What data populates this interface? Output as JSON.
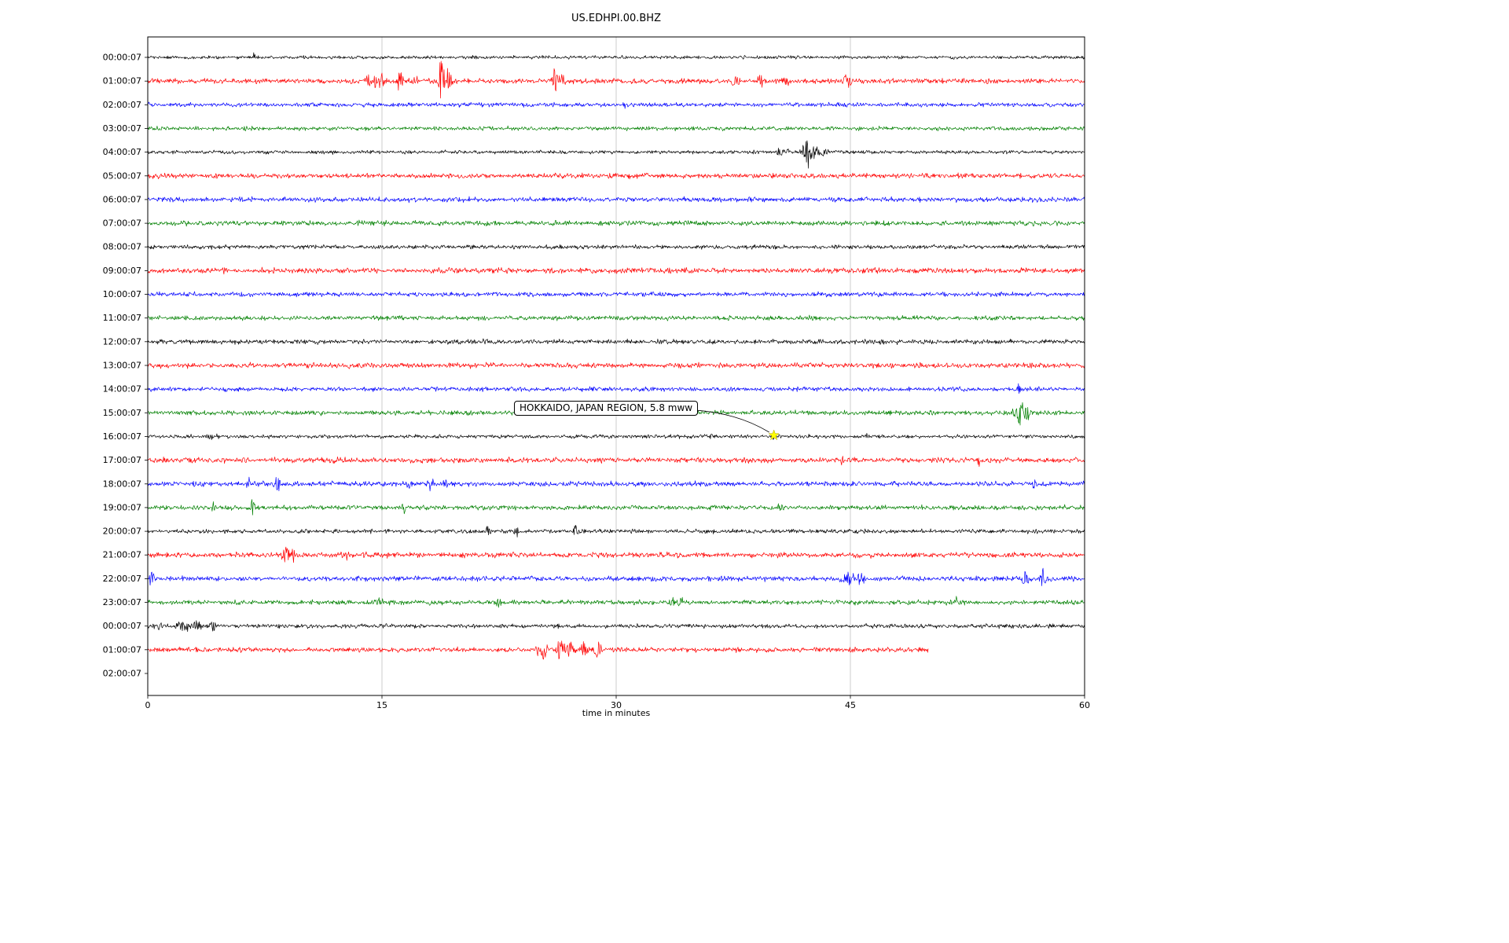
{
  "chart_data": {
    "type": "line",
    "title": "US.EDHPI.00.BHZ",
    "xlabel": "time in minutes",
    "xlim": [
      0,
      60
    ],
    "xticks": [
      0,
      15,
      30,
      45,
      60
    ],
    "grid_x": [
      15,
      30,
      45
    ],
    "legend": "none",
    "description": "24-hour helicorder day-plot, one trace per hour, colors cycle black/red/blue/green. Events are noise bursts: t=minutes, a=peak amplitude px, d=duration minutes.",
    "trace_colors": {
      "k": "#000000",
      "r": "#ff0000",
      "b": "#0000ff",
      "g": "#008000"
    },
    "rows": [
      {
        "label": "00:00:07",
        "color": "#000000",
        "noise": 1.2,
        "end": 60,
        "events": [
          {
            "t": 6.8,
            "a": 7,
            "d": 0.12
          },
          {
            "t": 38.2,
            "a": 4,
            "d": 0.12
          }
        ]
      },
      {
        "label": "01:00:07",
        "color": "#ff0000",
        "noise": 1.8,
        "end": 60,
        "events": [
          {
            "t": 14.3,
            "a": 11,
            "d": 0.5
          },
          {
            "t": 15.0,
            "a": 8,
            "d": 0.4
          },
          {
            "t": 16.2,
            "a": 13,
            "d": 0.35
          },
          {
            "t": 17.0,
            "a": 3,
            "d": 2.5
          },
          {
            "t": 18.8,
            "a": 38,
            "d": 0.2
          },
          {
            "t": 19.2,
            "a": 14,
            "d": 0.5
          },
          {
            "t": 26.1,
            "a": 17,
            "d": 0.25
          },
          {
            "t": 26.5,
            "a": 8,
            "d": 0.4
          },
          {
            "t": 37.6,
            "a": 7,
            "d": 0.5
          },
          {
            "t": 39.2,
            "a": 9,
            "d": 0.3
          },
          {
            "t": 40.9,
            "a": 7,
            "d": 0.4
          },
          {
            "t": 44.8,
            "a": 8,
            "d": 0.4
          }
        ]
      },
      {
        "label": "02:00:07",
        "color": "#0000ff",
        "noise": 1.5,
        "end": 60,
        "events": [
          {
            "t": 10.6,
            "a": 3,
            "d": 0.3
          },
          {
            "t": 30.6,
            "a": 9,
            "d": 0.15
          }
        ]
      },
      {
        "label": "03:00:07",
        "color": "#008000",
        "noise": 1.5,
        "end": 60,
        "events": []
      },
      {
        "label": "04:00:07",
        "color": "#000000",
        "noise": 1.3,
        "end": 60,
        "events": [
          {
            "t": 40.7,
            "a": 7,
            "d": 0.6
          },
          {
            "t": 42.2,
            "a": 24,
            "d": 0.35
          },
          {
            "t": 42.6,
            "a": 12,
            "d": 0.5
          },
          {
            "t": 43.3,
            "a": 6,
            "d": 0.4
          }
        ]
      },
      {
        "label": "05:00:07",
        "color": "#ff0000",
        "noise": 1.8,
        "end": 60,
        "events": []
      },
      {
        "label": "06:00:07",
        "color": "#0000ff",
        "noise": 1.8,
        "end": 60,
        "events": []
      },
      {
        "label": "07:00:07",
        "color": "#008000",
        "noise": 1.8,
        "end": 60,
        "events": []
      },
      {
        "label": "08:00:07",
        "color": "#000000",
        "noise": 1.5,
        "end": 60,
        "events": []
      },
      {
        "label": "09:00:07",
        "color": "#ff0000",
        "noise": 1.9,
        "end": 60,
        "events": []
      },
      {
        "label": "10:00:07",
        "color": "#0000ff",
        "noise": 1.6,
        "end": 60,
        "events": []
      },
      {
        "label": "11:00:07",
        "color": "#008000",
        "noise": 1.7,
        "end": 60,
        "events": []
      },
      {
        "label": "12:00:07",
        "color": "#000000",
        "noise": 1.7,
        "end": 60,
        "events": []
      },
      {
        "label": "13:00:07",
        "color": "#ff0000",
        "noise": 1.9,
        "end": 60,
        "events": [
          {
            "t": 13.0,
            "a": 4,
            "d": 0.15
          }
        ]
      },
      {
        "label": "14:00:07",
        "color": "#0000ff",
        "noise": 1.6,
        "end": 60,
        "events": [
          {
            "t": 55.8,
            "a": 9,
            "d": 0.2
          }
        ]
      },
      {
        "label": "15:00:07",
        "color": "#008000",
        "noise": 1.7,
        "end": 60,
        "events": [
          {
            "t": 55.5,
            "a": 7,
            "d": 0.25
          },
          {
            "t": 55.9,
            "a": 20,
            "d": 0.3
          },
          {
            "t": 56.3,
            "a": 10,
            "d": 0.4
          }
        ]
      },
      {
        "label": "16:00:07",
        "color": "#000000",
        "noise": 1.4,
        "end": 60,
        "events": [
          {
            "t": 4.0,
            "a": 5,
            "d": 0.3
          },
          {
            "t": 4.4,
            "a": 4,
            "d": 0.2
          },
          {
            "t": 36.1,
            "a": 8,
            "d": 0.1
          },
          {
            "t": 40.1,
            "a": 3,
            "d": 0.25
          },
          {
            "t": 46.0,
            "a": 5,
            "d": 0.1
          }
        ]
      },
      {
        "label": "17:00:07",
        "color": "#ff0000",
        "noise": 1.9,
        "end": 60,
        "events": [
          {
            "t": 44.5,
            "a": 6,
            "d": 0.25
          },
          {
            "t": 53.2,
            "a": 8,
            "d": 0.15
          }
        ]
      },
      {
        "label": "18:00:07",
        "color": "#0000ff",
        "noise": 1.8,
        "end": 60,
        "events": [
          {
            "t": 6.5,
            "a": 8,
            "d": 0.25
          },
          {
            "t": 8.3,
            "a": 10,
            "d": 0.25
          },
          {
            "t": 16.8,
            "a": 7,
            "d": 0.3
          },
          {
            "t": 18.1,
            "a": 8,
            "d": 0.3
          },
          {
            "t": 19.0,
            "a": 5,
            "d": 0.3
          },
          {
            "t": 56.8,
            "a": 9,
            "d": 0.25
          }
        ]
      },
      {
        "label": "19:00:07",
        "color": "#008000",
        "noise": 1.7,
        "end": 60,
        "events": [
          {
            "t": 4.2,
            "a": 9,
            "d": 0.2
          },
          {
            "t": 6.7,
            "a": 10,
            "d": 0.25
          },
          {
            "t": 16.4,
            "a": 8,
            "d": 0.2
          },
          {
            "t": 40.5,
            "a": 7,
            "d": 0.25
          }
        ]
      },
      {
        "label": "20:00:07",
        "color": "#000000",
        "noise": 1.5,
        "end": 60,
        "events": [
          {
            "t": 21.8,
            "a": 8,
            "d": 0.25
          },
          {
            "t": 23.6,
            "a": 9,
            "d": 0.25
          },
          {
            "t": 27.4,
            "a": 11,
            "d": 0.2
          }
        ]
      },
      {
        "label": "21:00:07",
        "color": "#ff0000",
        "noise": 1.9,
        "end": 60,
        "events": [
          {
            "t": 8.9,
            "a": 11,
            "d": 0.5
          },
          {
            "t": 9.3,
            "a": 7,
            "d": 0.4
          },
          {
            "t": 12.6,
            "a": 8,
            "d": 0.4
          }
        ]
      },
      {
        "label": "22:00:07",
        "color": "#0000ff",
        "noise": 1.8,
        "end": 60,
        "events": [
          {
            "t": 0.25,
            "a": 9,
            "d": 0.3
          },
          {
            "t": 44.9,
            "a": 9,
            "d": 0.6
          },
          {
            "t": 45.7,
            "a": 7,
            "d": 0.4
          },
          {
            "t": 56.2,
            "a": 10,
            "d": 0.4
          },
          {
            "t": 57.3,
            "a": 12,
            "d": 0.4
          }
        ]
      },
      {
        "label": "23:00:07",
        "color": "#008000",
        "noise": 1.7,
        "end": 60,
        "events": [
          {
            "t": 14.8,
            "a": 8,
            "d": 0.3
          },
          {
            "t": 22.5,
            "a": 7,
            "d": 0.25
          },
          {
            "t": 33.6,
            "a": 8,
            "d": 0.3
          },
          {
            "t": 34.1,
            "a": 6,
            "d": 0.3
          },
          {
            "t": 51.8,
            "a": 6,
            "d": 0.2
          }
        ]
      },
      {
        "label": "00:00:07",
        "color": "#000000",
        "noise": 1.5,
        "end": 60,
        "events": [
          {
            "t": 0.6,
            "a": 5,
            "d": 0.6
          },
          {
            "t": 2.3,
            "a": 8,
            "d": 0.6
          },
          {
            "t": 3.1,
            "a": 6,
            "d": 0.5
          },
          {
            "t": 4.2,
            "a": 7,
            "d": 0.3
          }
        ]
      },
      {
        "label": "01:00:07",
        "color": "#ff0000",
        "noise": 1.8,
        "end": 50,
        "events": [
          {
            "t": 25.3,
            "a": 11,
            "d": 0.6
          },
          {
            "t": 26.4,
            "a": 15,
            "d": 0.35
          },
          {
            "t": 27.0,
            "a": 9,
            "d": 0.5
          },
          {
            "t": 27.9,
            "a": 11,
            "d": 0.4
          },
          {
            "t": 28.8,
            "a": 13,
            "d": 0.3
          },
          {
            "t": 30.2,
            "a": 5,
            "d": 0.3
          }
        ]
      },
      {
        "label": "02:00:07",
        "color": "#0000ff",
        "noise": 0,
        "end": 0,
        "events": []
      }
    ],
    "annotation": {
      "text": "HOKKAIDO, JAPAN REGION, 5.8 mww",
      "row": 16,
      "t": 40.1,
      "marker": "yellow-star",
      "marker_color": "#ffff00"
    }
  }
}
